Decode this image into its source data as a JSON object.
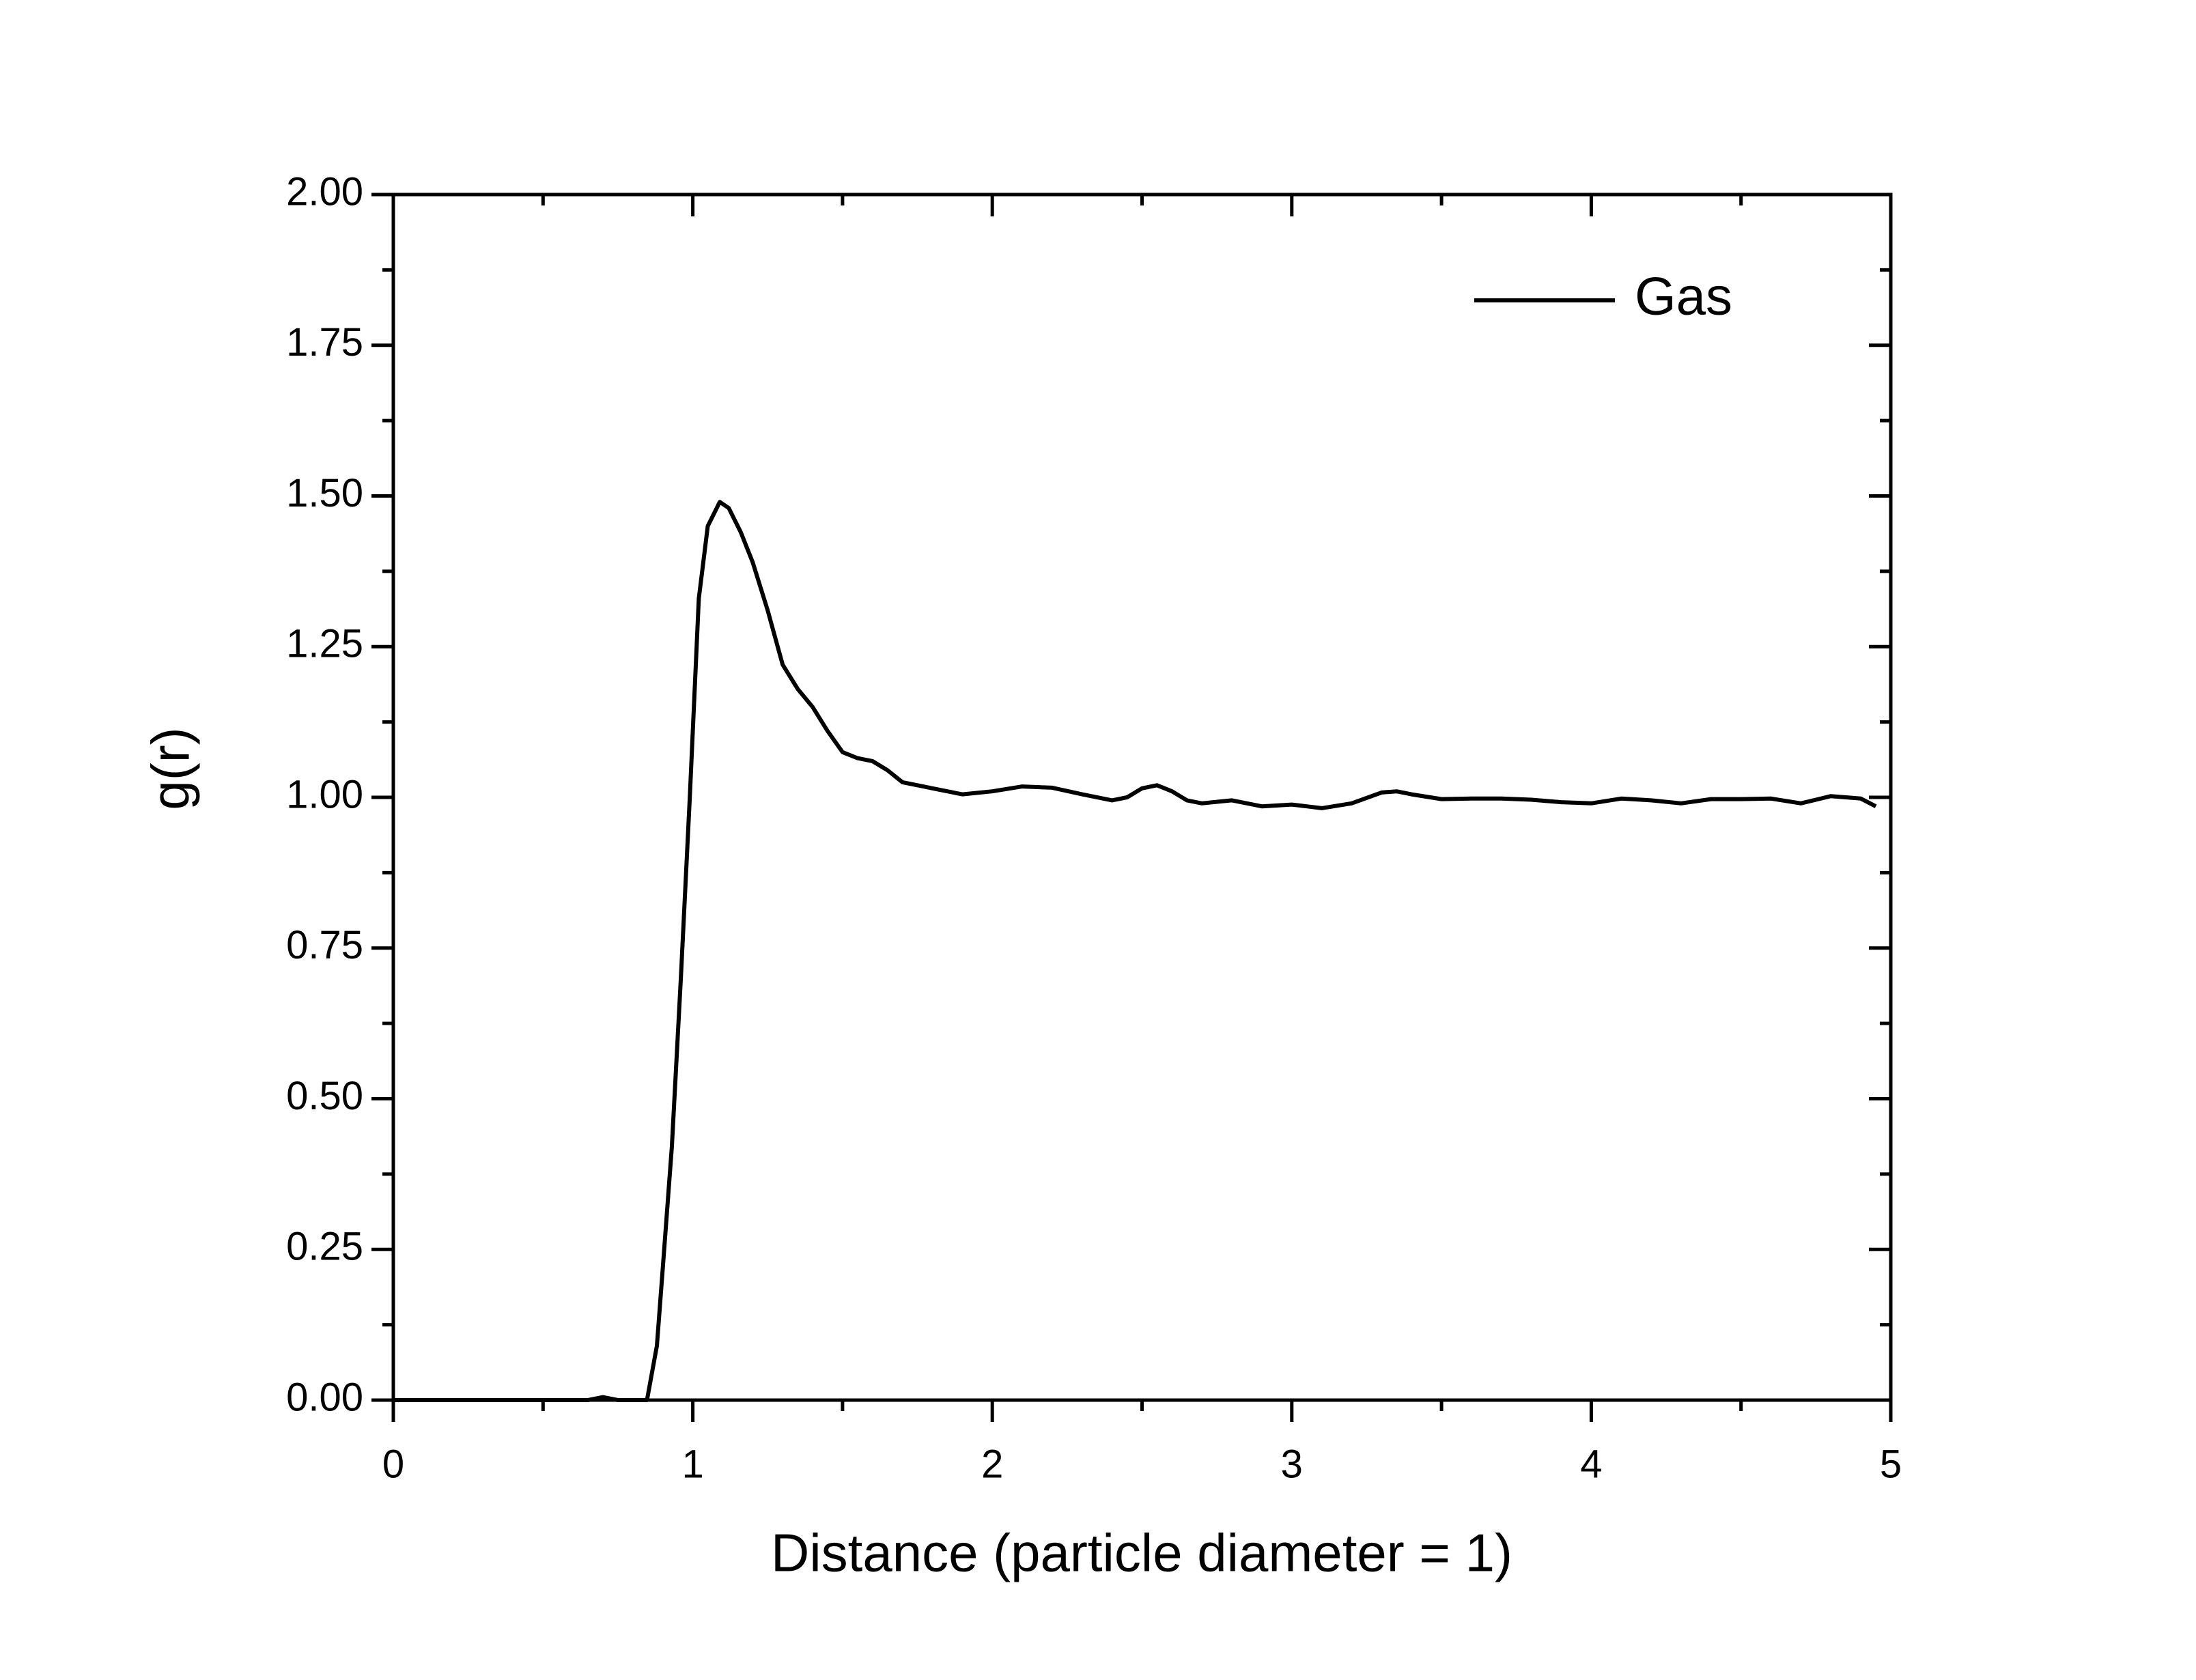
{
  "chart_data": {
    "type": "line",
    "x_label": "Distance (particle diameter = 1)",
    "y_label": "g(r)",
    "xlim": [
      0,
      5
    ],
    "ylim": [
      0,
      2
    ],
    "xticks": [
      0,
      1,
      2,
      3,
      4,
      5
    ],
    "yticks": [
      {
        "value": 0,
        "label": "0.00"
      },
      {
        "value": 0.25,
        "label": "0.25"
      },
      {
        "value": 0.5,
        "label": "0.50"
      },
      {
        "value": 0.75,
        "label": "0.75"
      },
      {
        "value": 1,
        "label": "1.00"
      },
      {
        "value": 1.25,
        "label": "1.25"
      },
      {
        "value": 1.5,
        "label": "1.50"
      },
      {
        "value": 1.75,
        "label": "1.75"
      },
      {
        "value": 2,
        "label": "2.00"
      }
    ],
    "legend": "upper right",
    "x": [
      0,
      0.1,
      0.2,
      0.3,
      0.4,
      0.5,
      0.55,
      0.65,
      0.7,
      0.75,
      0.8,
      0.847,
      0.88,
      0.9,
      0.93,
      0.96,
      0.99,
      1.02,
      1.05,
      1.09,
      1.12,
      1.16,
      1.2,
      1.25,
      1.3,
      1.35,
      1.4,
      1.45,
      1.5,
      1.55,
      1.6,
      1.65,
      1.7,
      1.75,
      1.8,
      1.9,
      2.0,
      2.1,
      2.2,
      2.3,
      2.4,
      2.45,
      2.5,
      2.55,
      2.6,
      2.65,
      2.7,
      2.8,
      2.9,
      3.0,
      3.05,
      3.1,
      3.2,
      3.3,
      3.35,
      3.4,
      3.5,
      3.6,
      3.7,
      3.8,
      3.9,
      4.0,
      4.1,
      4.2,
      4.3,
      4.4,
      4.5,
      4.6,
      4.7,
      4.8,
      4.9,
      4.95
    ],
    "series": [
      {
        "name": "Gas",
        "color": "#000000",
        "values": [
          0,
          0,
          0,
          0,
          0,
          0,
          0,
          0,
          0.005,
          0,
          0,
          0,
          0.09,
          0.22,
          0.42,
          0.7,
          1.0,
          1.33,
          1.45,
          1.49,
          1.48,
          1.44,
          1.39,
          1.31,
          1.22,
          1.18,
          1.15,
          1.11,
          1.075,
          1.065,
          1.06,
          1.045,
          1.025,
          1.02,
          1.015,
          1.005,
          1.01,
          1.018,
          1.016,
          1.005,
          0.995,
          1.0,
          1.015,
          1.02,
          1.01,
          0.995,
          0.99,
          0.995,
          0.985,
          0.988,
          0.985,
          0.982,
          0.99,
          1.008,
          1.01,
          1.005,
          0.997,
          0.998,
          0.998,
          0.996,
          0.992,
          0.99,
          0.998,
          0.995,
          0.99,
          0.997,
          0.997,
          0.998,
          0.99,
          1.002,
          0.998,
          0.985
        ]
      }
    ]
  }
}
